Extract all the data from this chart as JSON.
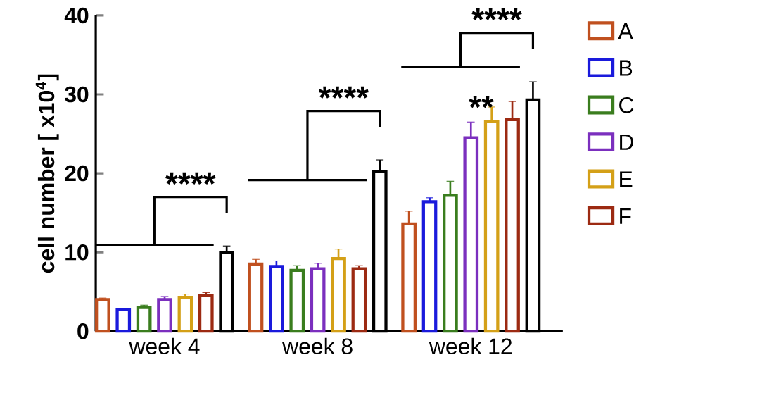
{
  "chart_data": {
    "type": "bar",
    "ylabel": "cell number [ x10$^{4}$]",
    "categories": [
      "week 4",
      "week 8",
      "week 12"
    ],
    "series": [
      {
        "name": "A",
        "color": "#c0501f",
        "values": [
          4.0,
          8.5,
          13.6
        ],
        "errors": [
          0.2,
          0.6,
          1.6
        ]
      },
      {
        "name": "B",
        "color": "#1a1adc",
        "values": [
          2.7,
          8.2,
          16.4
        ],
        "errors": [
          0.2,
          0.7,
          0.5
        ]
      },
      {
        "name": "C",
        "color": "#3a7d1e",
        "values": [
          3.0,
          7.7,
          17.2
        ],
        "errors": [
          0.3,
          0.6,
          1.8
        ]
      },
      {
        "name": "D",
        "color": "#7b2fbe",
        "values": [
          4.0,
          7.9,
          24.5
        ],
        "errors": [
          0.4,
          0.7,
          2.0
        ]
      },
      {
        "name": "E",
        "color": "#d4a017",
        "values": [
          4.3,
          9.2,
          26.6
        ],
        "errors": [
          0.4,
          1.2,
          1.8
        ]
      },
      {
        "name": "F",
        "color": "#9c2a12",
        "values": [
          4.5,
          7.9,
          26.8
        ],
        "errors": [
          0.4,
          0.4,
          2.3
        ]
      },
      {
        "color": "#000000",
        "values": [
          10.0,
          20.2,
          29.3
        ],
        "errors": [
          0.8,
          1.5,
          2.3
        ]
      }
    ],
    "ylim": [
      0,
      40
    ],
    "yticks": [
      0,
      10,
      20,
      30,
      40
    ],
    "legend": "right",
    "annotations": [
      "****",
      "****",
      "****",
      "**"
    ]
  }
}
